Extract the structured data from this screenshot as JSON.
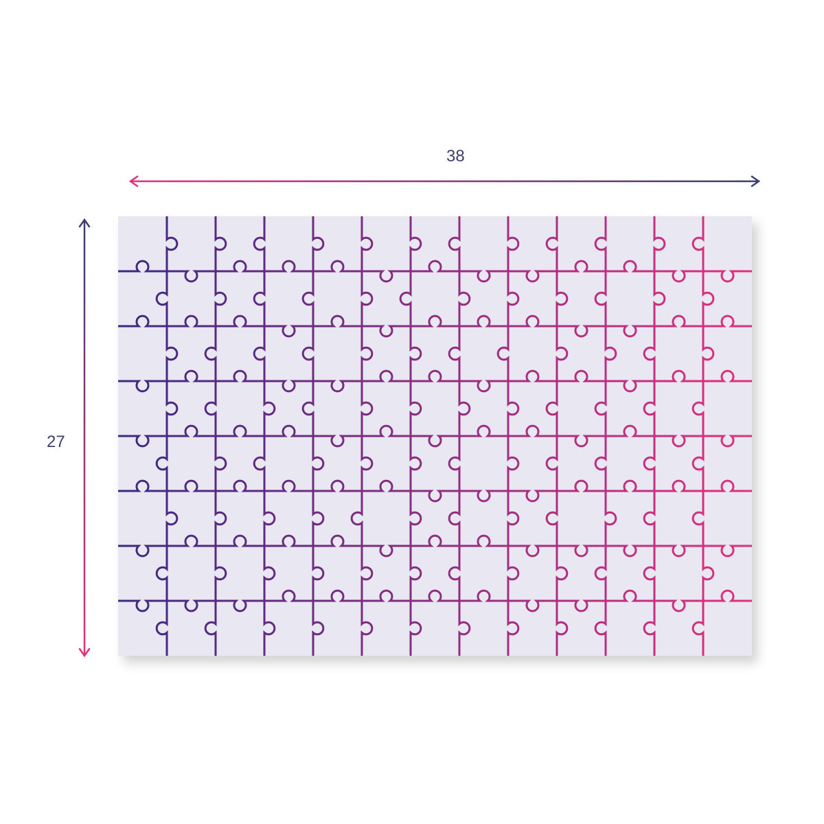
{
  "dimensions": {
    "width": "38",
    "height": "27"
  },
  "puzzle": {
    "columns": 13,
    "rows": 8
  },
  "colors": {
    "start": "#3a2a80",
    "end": "#e2307e",
    "board": "#e9e7f2",
    "label": "#3b3f6b"
  }
}
